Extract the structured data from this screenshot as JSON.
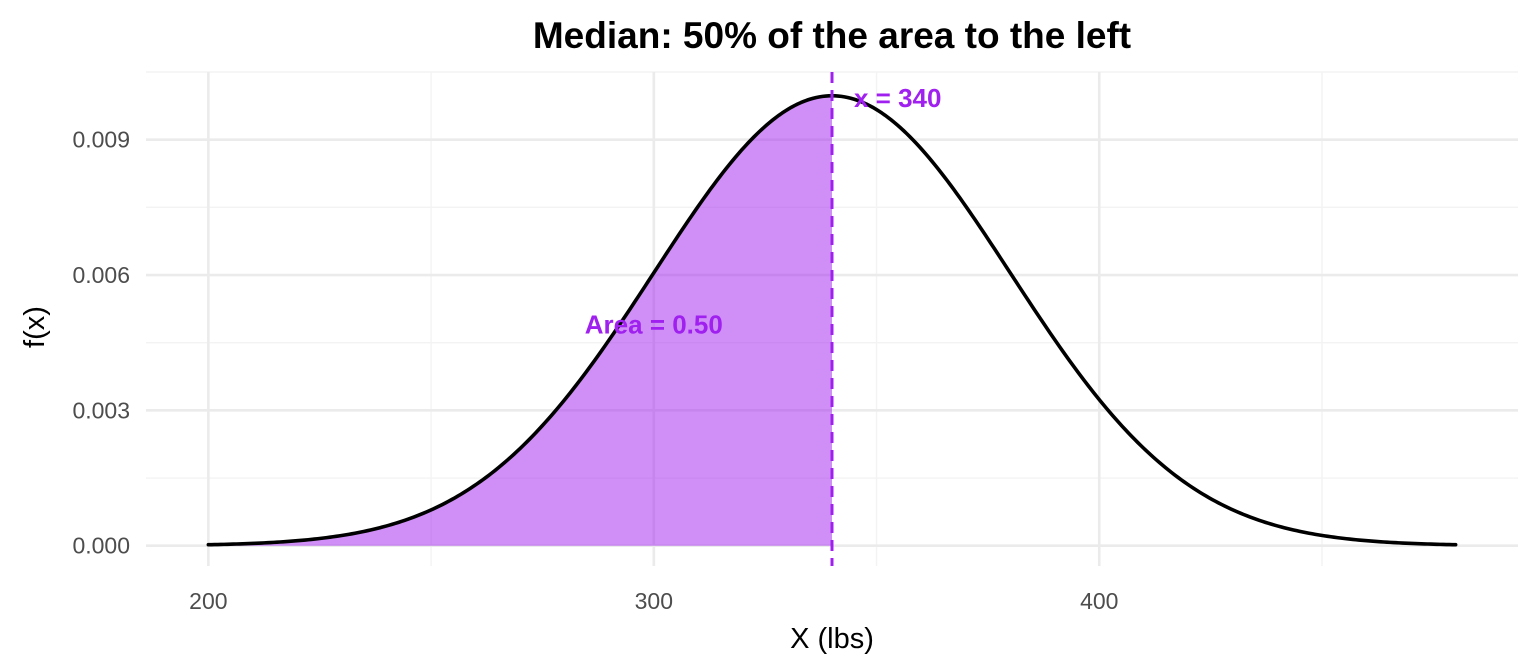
{
  "chart_data": {
    "type": "area",
    "distribution": "normal",
    "mean": 340,
    "sd": 40,
    "x_range": [
      200,
      480
    ],
    "shade_range": [
      200,
      340
    ],
    "title": "Median: 50% of the area to the left",
    "xlabel": "X (lbs)",
    "ylabel": "f(x)",
    "xlim": [
      186,
      494
    ],
    "ylim": [
      -0.00045,
      0.0105
    ],
    "x_ticks": [
      200,
      300,
      400
    ],
    "x_tick_labels": [
      "200",
      "300",
      "400"
    ],
    "y_ticks": [
      0.0,
      0.003,
      0.006,
      0.009
    ],
    "y_tick_labels": [
      "0.000",
      "0.003",
      "0.006",
      "0.009"
    ],
    "x_minor_ticks": [
      250,
      350,
      450
    ],
    "y_minor_ticks": [
      0.0015,
      0.0045,
      0.0075,
      0.0105
    ],
    "grid": true,
    "median_line": {
      "x": 340,
      "label": "x = 340"
    },
    "area_label": {
      "text": "Area = 0.50",
      "x": 300,
      "y": 0.0049
    },
    "colors": {
      "curve": "#000000",
      "shade": "#a020f0",
      "shade_opacity": 0.5,
      "median_line": "#a020f0",
      "annotation": "#a020f0"
    }
  }
}
